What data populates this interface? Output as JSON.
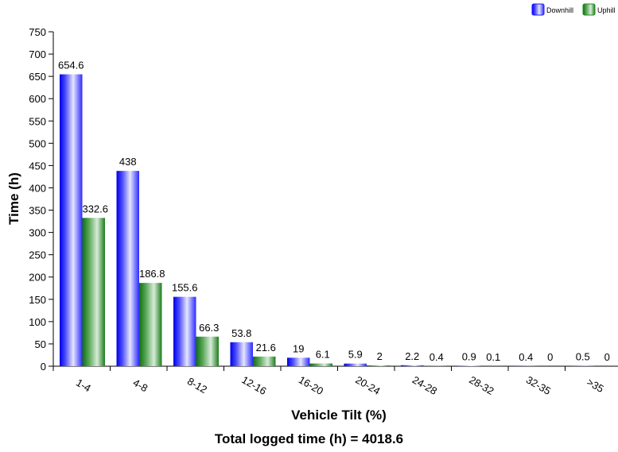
{
  "chart_data": {
    "type": "bar",
    "xlabel": "Vehicle Tilt (%)",
    "ylabel": "Time (h)",
    "categories": [
      "1-4",
      "4-8",
      "8-12",
      "12-16",
      "16-20",
      "20-24",
      "24-28",
      "28-32",
      "32-35",
      ">35"
    ],
    "series": [
      {
        "name": "Downhill",
        "values": [
          654.6,
          438,
          155.6,
          53.8,
          19,
          5.9,
          2.2,
          0.9,
          0.4,
          0.5
        ]
      },
      {
        "name": "Uphill",
        "values": [
          332.6,
          186.8,
          66.3,
          21.6,
          6.1,
          2,
          0.4,
          0.1,
          0,
          0
        ]
      }
    ],
    "ylim": [
      0,
      750
    ],
    "yticks": [
      0,
      50,
      100,
      150,
      200,
      250,
      300,
      350,
      400,
      450,
      500,
      550,
      600,
      650,
      700,
      750
    ],
    "legend_position": "top-right",
    "grid": false,
    "colors": {
      "Downhill": "#1a1aff",
      "Uphill": "#1e8c1e"
    }
  },
  "footer": {
    "total_text": "Total logged time (h) = 4018.6"
  }
}
